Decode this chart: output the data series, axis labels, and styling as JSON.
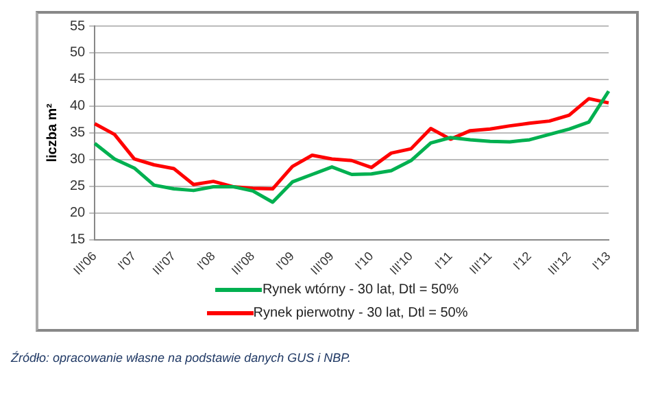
{
  "chart_data": {
    "type": "line",
    "ylabel": "liczba m²",
    "categories": [
      "III'06",
      null,
      "I'07",
      null,
      "III'07",
      null,
      "I'08",
      null,
      "III'08",
      null,
      "I'09",
      null,
      "III'09",
      null,
      "I'10",
      null,
      "III'10",
      null,
      "I'11",
      null,
      "III'11",
      null,
      "I'12",
      null,
      "III'12",
      null,
      "I'13"
    ],
    "series": [
      {
        "name": "Rynek wtórny - 30 lat, Dtl = 50%",
        "color": "#00b050",
        "values": [
          33.0,
          30.1,
          28.4,
          25.2,
          24.5,
          24.2,
          24.9,
          24.9,
          24.1,
          22.0,
          25.8,
          27.2,
          28.6,
          27.2,
          27.3,
          27.9,
          29.8,
          33.1,
          34.1,
          33.7,
          33.4,
          33.3,
          33.7,
          34.7,
          35.7,
          37.0,
          42.8
        ]
      },
      {
        "name": "Rynek pierwotny - 30 lat, Dtl = 50%",
        "color": "#ff0000",
        "values": [
          36.7,
          34.7,
          30.1,
          29.0,
          28.3,
          25.3,
          25.9,
          24.9,
          24.6,
          24.5,
          28.7,
          30.8,
          30.1,
          29.8,
          28.5,
          31.2,
          32.0,
          35.8,
          33.8,
          35.4,
          35.7,
          36.3,
          36.8,
          37.2,
          38.3,
          41.4,
          40.6
        ]
      }
    ],
    "ylim": [
      15,
      55
    ],
    "yticks": [
      15,
      20,
      25,
      30,
      35,
      40,
      45,
      50,
      55
    ],
    "grid": "y",
    "legend": "bottom",
    "marker": "none",
    "line_style": "solid",
    "annotations": [
      "Źródło: opracowanie własne na podstawie danych GUS i NBP."
    ]
  }
}
